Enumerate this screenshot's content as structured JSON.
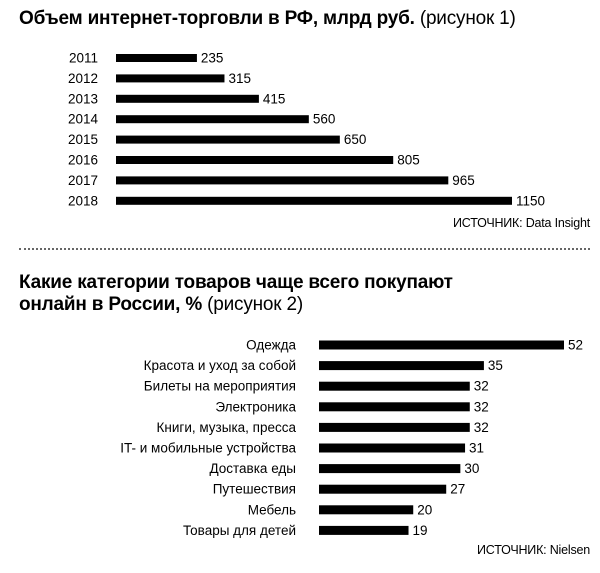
{
  "chart_data": [
    {
      "type": "bar",
      "orientation": "horizontal",
      "title": "Объем интернет-торговли в РФ, млрд руб.",
      "subtitle": "(рисунок 1)",
      "categories": [
        "2011",
        "2012",
        "2013",
        "2014",
        "2015",
        "2016",
        "2017",
        "2018"
      ],
      "values": [
        235,
        315,
        415,
        560,
        650,
        805,
        965,
        1150
      ],
      "xlim": [
        0,
        1150
      ],
      "grid": false,
      "source": "ИСТОЧНИК:  Data Insight"
    },
    {
      "type": "bar",
      "orientation": "horizontal",
      "title_line1": "Какие категории товаров чаще всего покупают",
      "title_line2": "онлайн в России, %",
      "subtitle": "(рисунок 2)",
      "categories": [
        "Одежда",
        "Красота и уход за собой",
        "Билеты на мероприятия",
        "Электроника",
        "Книги, музыка, пресса",
        "IT- и мобильные устройства",
        "Доставка еды",
        "Путешествия",
        "Мебель",
        "Товары для детей"
      ],
      "values": [
        52,
        35,
        32,
        32,
        32,
        31,
        30,
        27,
        20,
        19
      ],
      "xlim": [
        0,
        52
      ],
      "grid": false,
      "source": "ИСТОЧНИК: Nielsen"
    }
  ]
}
